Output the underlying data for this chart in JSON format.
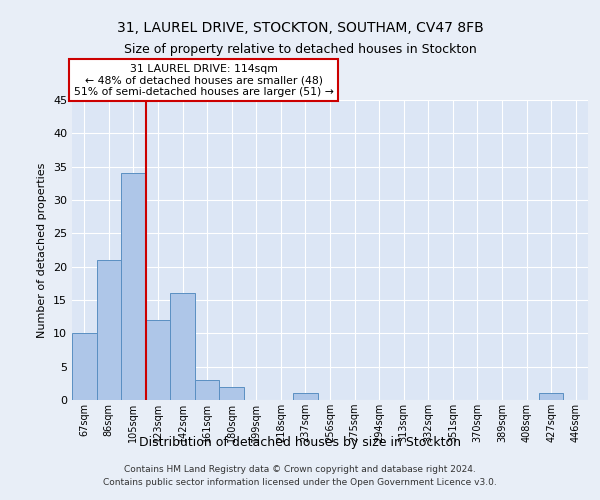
{
  "title1": "31, LAUREL DRIVE, STOCKTON, SOUTHAM, CV47 8FB",
  "title2": "Size of property relative to detached houses in Stockton",
  "xlabel": "Distribution of detached houses by size in Stockton",
  "ylabel": "Number of detached properties",
  "bar_labels": [
    "67sqm",
    "86sqm",
    "105sqm",
    "123sqm",
    "142sqm",
    "161sqm",
    "180sqm",
    "199sqm",
    "218sqm",
    "237sqm",
    "256sqm",
    "275sqm",
    "294sqm",
    "313sqm",
    "332sqm",
    "351sqm",
    "370sqm",
    "389sqm",
    "408sqm",
    "427sqm",
    "446sqm"
  ],
  "bar_values": [
    10,
    21,
    34,
    12,
    16,
    3,
    2,
    0,
    0,
    1,
    0,
    0,
    0,
    0,
    0,
    0,
    0,
    0,
    0,
    1,
    0
  ],
  "bar_color": "#aec6e8",
  "bar_edge_color": "#5a8fc2",
  "bg_color": "#e8eef7",
  "plot_bg_color": "#dce6f5",
  "grid_color": "#ffffff",
  "vline_index": 2.5,
  "marker_label1": "31 LAUREL DRIVE: 114sqm",
  "marker_label2": "← 48% of detached houses are smaller (48)",
  "marker_label3": "51% of semi-detached houses are larger (51) →",
  "annotation_box_color": "#ffffff",
  "annotation_border_color": "#cc0000",
  "vline_color": "#cc0000",
  "ylim": [
    0,
    45
  ],
  "yticks": [
    0,
    5,
    10,
    15,
    20,
    25,
    30,
    35,
    40,
    45
  ],
  "footer1": "Contains HM Land Registry data © Crown copyright and database right 2024.",
  "footer2": "Contains public sector information licensed under the Open Government Licence v3.0."
}
